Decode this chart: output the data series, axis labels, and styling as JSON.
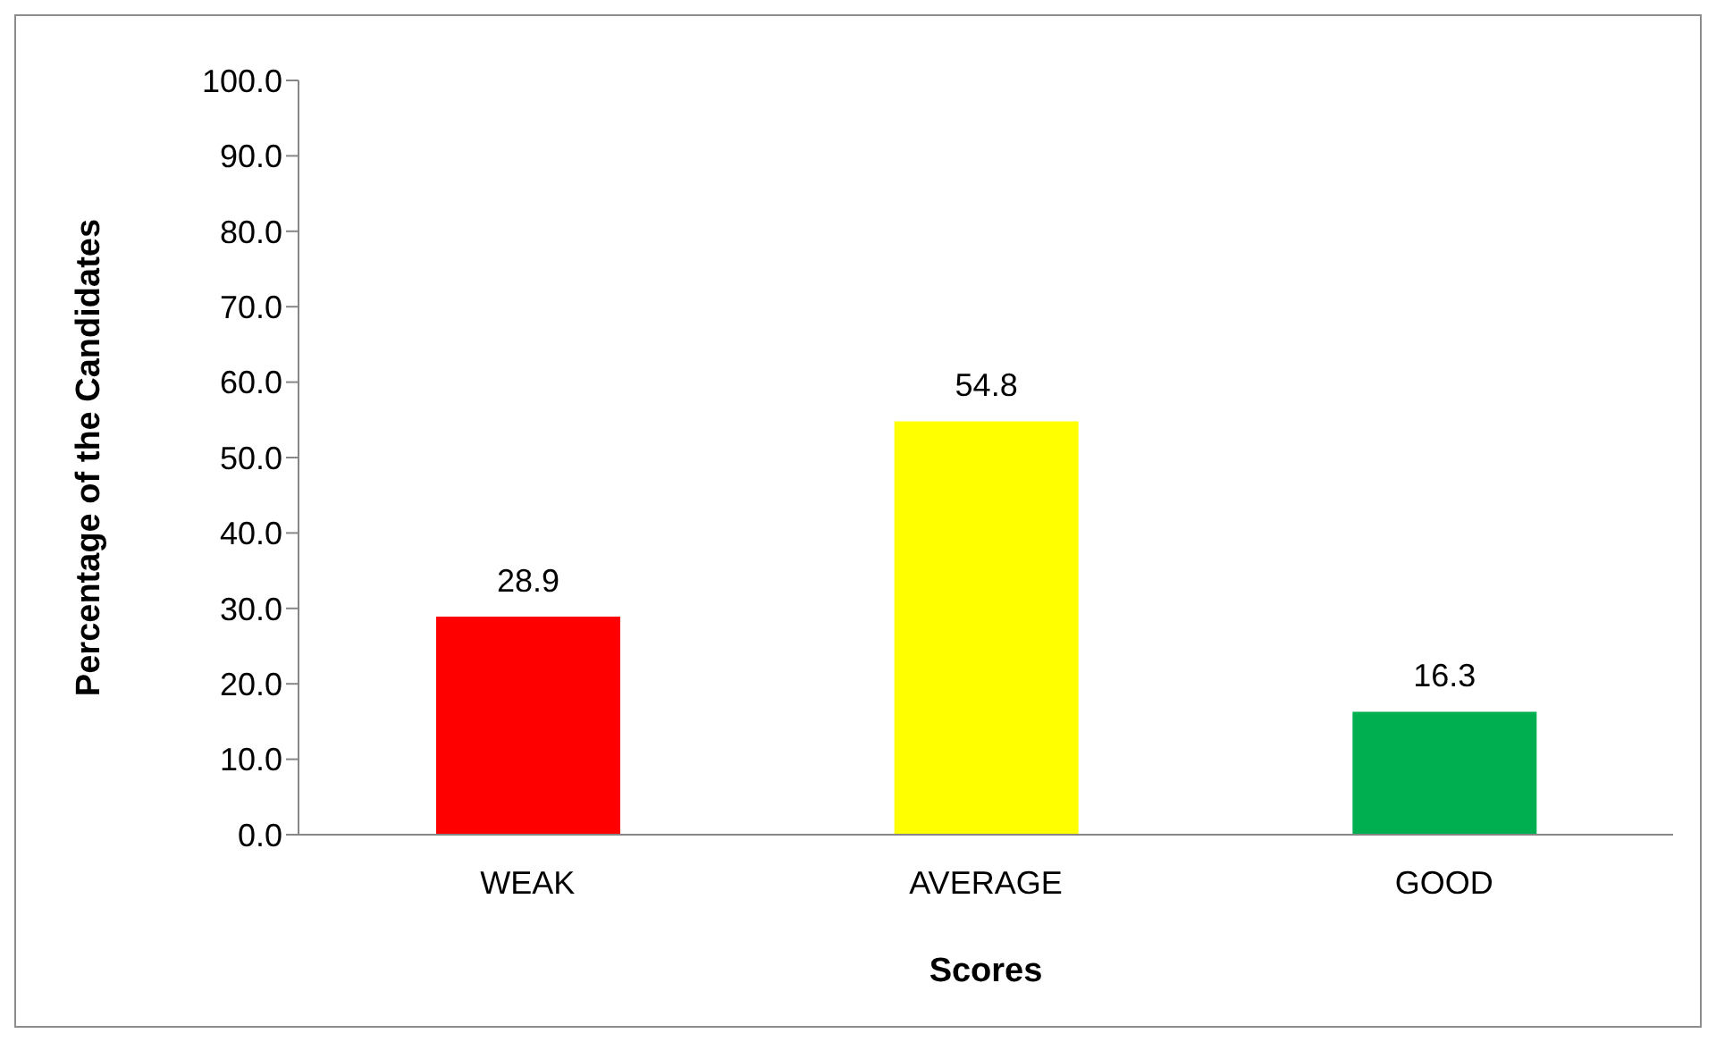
{
  "chart_data": {
    "type": "bar",
    "xlabel": "Scores",
    "ylabel": "Percentage of the Candidates",
    "categories": [
      "WEAK",
      "AVERAGE",
      "GOOD"
    ],
    "values": [
      28.9,
      54.8,
      16.3
    ],
    "colors": [
      "#ff0000",
      "#ffff00",
      "#00b050"
    ],
    "ylim": [
      0,
      100
    ],
    "yticks": [
      {
        "value": 0,
        "label": "0.0"
      },
      {
        "value": 10,
        "label": "10.0"
      },
      {
        "value": 20,
        "label": "20.0"
      },
      {
        "value": 30,
        "label": "30.0"
      },
      {
        "value": 40,
        "label": "40.0"
      },
      {
        "value": 50,
        "label": "50.0"
      },
      {
        "value": 60,
        "label": "60.0"
      },
      {
        "value": 70,
        "label": "70.0"
      },
      {
        "value": 80,
        "label": "80.0"
      },
      {
        "value": 90,
        "label": "90.0"
      },
      {
        "value": 100,
        "label": "100.0"
      }
    ],
    "data_labels": true,
    "grid": false,
    "legend": false
  }
}
